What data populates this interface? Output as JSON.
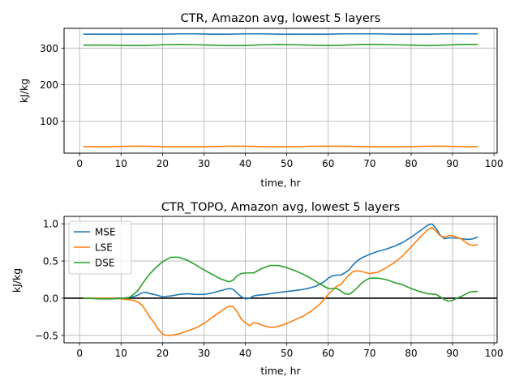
{
  "colors": {
    "MSE": "#1f77b4",
    "LSE": "#ff7f0e",
    "DSE": "#2ca02c",
    "grid": "#b0b0b0",
    "zero_line": "#000000"
  },
  "chart_data": [
    {
      "type": "line",
      "title": "CTR, Amazon avg, lowest 5 layers",
      "xlabel": "time, hr",
      "ylabel": "kJ/kg",
      "xlim": [
        -3.75,
        100.75
      ],
      "ylim": [
        12,
        354
      ],
      "xticks": [
        0,
        10,
        20,
        30,
        40,
        50,
        60,
        70,
        80,
        90,
        100
      ],
      "yticks": [
        100,
        200,
        300
      ],
      "grid": true,
      "legend": null,
      "series": [
        {
          "name": "MSE",
          "color_key": "MSE",
          "x": [
            1,
            4,
            8,
            12,
            16,
            20,
            24,
            28,
            32,
            36,
            40,
            44,
            48,
            52,
            56,
            60,
            64,
            68,
            72,
            76,
            80,
            84,
            88,
            92,
            96
          ],
          "y": [
            338,
            338,
            338,
            338,
            338,
            338,
            339,
            339,
            338,
            338,
            339,
            339,
            338,
            338,
            338,
            338,
            339,
            339,
            339,
            338,
            338,
            338,
            339,
            339,
            339
          ]
        },
        {
          "name": "LSE",
          "color_key": "LSE",
          "x": [
            1,
            4,
            8,
            12,
            16,
            20,
            24,
            28,
            32,
            36,
            40,
            44,
            48,
            52,
            56,
            60,
            64,
            68,
            72,
            76,
            80,
            84,
            88,
            92,
            96
          ],
          "y": [
            30,
            30,
            30,
            31,
            31,
            30,
            30,
            30,
            30,
            31,
            31,
            30,
            30,
            30,
            31,
            31,
            31,
            30,
            30,
            30,
            30,
            31,
            31,
            30,
            30
          ]
        },
        {
          "name": "DSE",
          "color_key": "DSE",
          "x": [
            1,
            4,
            8,
            12,
            16,
            20,
            24,
            28,
            32,
            36,
            40,
            44,
            48,
            52,
            56,
            60,
            64,
            68,
            72,
            76,
            80,
            84,
            88,
            92,
            96
          ],
          "y": [
            308,
            308,
            308,
            307,
            307,
            309,
            310,
            309,
            308,
            307,
            307,
            309,
            310,
            309,
            308,
            307,
            308,
            310,
            310,
            309,
            308,
            307,
            308,
            310,
            310
          ]
        }
      ]
    },
    {
      "type": "line",
      "title": "CTR_TOPO, Amazon avg, lowest 5 layers",
      "xlabel": "time, hr",
      "ylabel": "kJ/kg",
      "xlim": [
        -3.75,
        100.75
      ],
      "ylim": [
        -0.6,
        1.1
      ],
      "xticks": [
        0,
        10,
        20,
        30,
        40,
        50,
        60,
        70,
        80,
        90,
        100
      ],
      "yticks": [
        -0.5,
        0.0,
        0.5,
        1.0
      ],
      "ytick_labels": [
        "−0.5",
        "0.0",
        "0.5",
        "1.0"
      ],
      "grid": true,
      "zero_line": true,
      "legend": "upper left",
      "series": [
        {
          "name": "MSE",
          "color_key": "MSE",
          "x": [
            1,
            5,
            8,
            10,
            12,
            13,
            14,
            15,
            16,
            17,
            18,
            20,
            22,
            24,
            26,
            28,
            30,
            32,
            34,
            36,
            37,
            38,
            39,
            40,
            41,
            42,
            43,
            45,
            47,
            50,
            53,
            55,
            57,
            59,
            60,
            61,
            62,
            63,
            64,
            65,
            66,
            67,
            68,
            70,
            72,
            74,
            76,
            78,
            80,
            82,
            84,
            85,
            86,
            87,
            88,
            89,
            90,
            91,
            92,
            94,
            95,
            96
          ],
          "y": [
            0.0,
            0.0,
            0.0,
            0.0,
            0.01,
            0.02,
            0.04,
            0.07,
            0.08,
            0.06,
            0.05,
            0.02,
            0.03,
            0.05,
            0.06,
            0.05,
            0.05,
            0.07,
            0.1,
            0.13,
            0.12,
            0.07,
            0.02,
            -0.01,
            0.0,
            0.03,
            0.04,
            0.05,
            0.07,
            0.09,
            0.11,
            0.13,
            0.16,
            0.22,
            0.27,
            0.3,
            0.31,
            0.31,
            0.34,
            0.38,
            0.45,
            0.5,
            0.54,
            0.59,
            0.63,
            0.66,
            0.7,
            0.75,
            0.82,
            0.9,
            0.98,
            1.0,
            0.94,
            0.85,
            0.8,
            0.81,
            0.81,
            0.81,
            0.8,
            0.79,
            0.8,
            0.82
          ]
        },
        {
          "name": "LSE",
          "color_key": "LSE",
          "x": [
            1,
            5,
            8,
            10,
            12,
            13,
            14,
            15,
            16,
            17,
            18,
            19,
            20,
            21,
            22,
            24,
            26,
            28,
            30,
            32,
            34,
            35,
            36,
            37,
            38,
            39,
            40,
            41,
            42,
            43,
            44,
            45,
            46,
            47,
            48,
            50,
            52,
            54,
            56,
            58,
            60,
            62,
            63,
            64,
            65,
            66,
            67,
            68,
            70,
            72,
            74,
            76,
            78,
            80,
            82,
            84,
            85,
            86,
            87,
            88,
            89,
            90,
            91,
            92,
            93,
            94,
            95,
            96
          ],
          "y": [
            0.0,
            0.0,
            0.0,
            -0.01,
            -0.02,
            -0.03,
            -0.05,
            -0.09,
            -0.17,
            -0.26,
            -0.33,
            -0.42,
            -0.48,
            -0.5,
            -0.5,
            -0.48,
            -0.44,
            -0.4,
            -0.34,
            -0.26,
            -0.18,
            -0.14,
            -0.11,
            -0.11,
            -0.18,
            -0.28,
            -0.33,
            -0.37,
            -0.33,
            -0.34,
            -0.36,
            -0.38,
            -0.39,
            -0.39,
            -0.38,
            -0.34,
            -0.29,
            -0.24,
            -0.17,
            -0.08,
            0.05,
            0.16,
            0.18,
            0.25,
            0.31,
            0.36,
            0.37,
            0.36,
            0.33,
            0.35,
            0.41,
            0.48,
            0.57,
            0.69,
            0.81,
            0.92,
            0.95,
            0.9,
            0.84,
            0.82,
            0.84,
            0.84,
            0.82,
            0.8,
            0.76,
            0.72,
            0.71,
            0.72
          ]
        },
        {
          "name": "DSE",
          "color_key": "DSE",
          "x": [
            1,
            5,
            8,
            10,
            11,
            12,
            13,
            14,
            15,
            16,
            17,
            18,
            20,
            22,
            24,
            26,
            28,
            30,
            32,
            34,
            35,
            36,
            37,
            38,
            39,
            40,
            42,
            43,
            44,
            46,
            48,
            50,
            52,
            54,
            56,
            58,
            60,
            62,
            63,
            64,
            65,
            66,
            67,
            68,
            69,
            70,
            72,
            74,
            76,
            78,
            80,
            82,
            84,
            86,
            87,
            88,
            89,
            90,
            91,
            92,
            93,
            94,
            95,
            96
          ],
          "y": [
            0.0,
            -0.01,
            -0.01,
            0.0,
            0.0,
            0.01,
            0.05,
            0.1,
            0.18,
            0.26,
            0.33,
            0.39,
            0.49,
            0.55,
            0.55,
            0.51,
            0.45,
            0.38,
            0.32,
            0.26,
            0.24,
            0.22,
            0.24,
            0.3,
            0.33,
            0.34,
            0.34,
            0.37,
            0.4,
            0.44,
            0.44,
            0.41,
            0.37,
            0.32,
            0.26,
            0.19,
            0.13,
            0.13,
            0.1,
            0.06,
            0.05,
            0.09,
            0.14,
            0.2,
            0.24,
            0.27,
            0.27,
            0.25,
            0.21,
            0.18,
            0.13,
            0.09,
            0.06,
            0.05,
            0.02,
            -0.02,
            -0.04,
            -0.03,
            0.0,
            0.02,
            0.05,
            0.08,
            0.09,
            0.09
          ]
        }
      ]
    }
  ]
}
